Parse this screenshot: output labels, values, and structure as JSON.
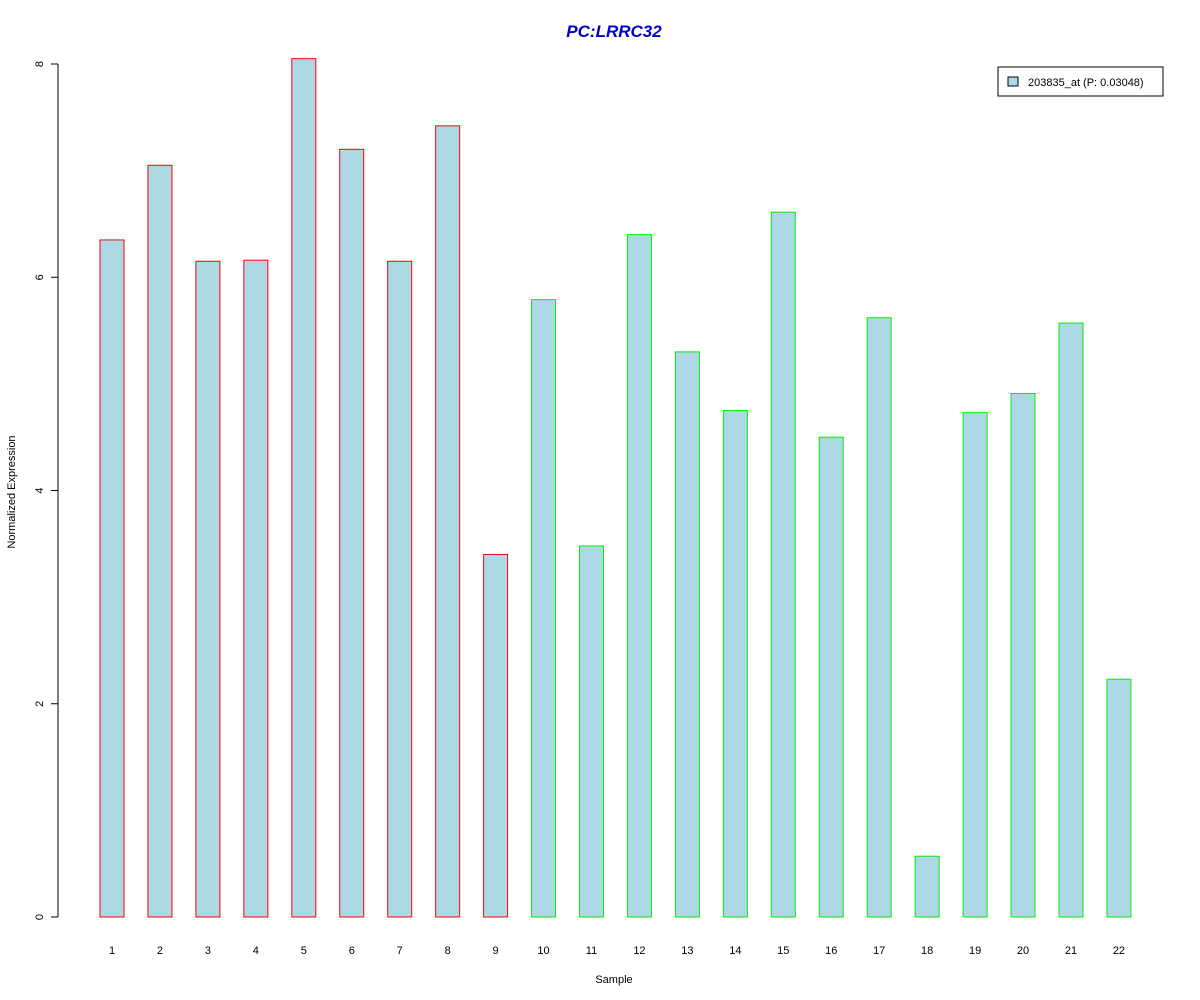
{
  "chart_data": {
    "type": "bar",
    "title": "PC:LRRC32",
    "xlabel": "Sample",
    "ylabel": "Normalized Expression",
    "categories": [
      "1",
      "2",
      "3",
      "4",
      "5",
      "6",
      "7",
      "8",
      "9",
      "10",
      "11",
      "12",
      "13",
      "14",
      "15",
      "16",
      "17",
      "18",
      "19",
      "20",
      "21",
      "22"
    ],
    "values": [
      6.35,
      7.05,
      6.15,
      6.16,
      8.05,
      7.2,
      6.15,
      7.42,
      3.4,
      5.79,
      3.48,
      6.4,
      5.3,
      4.75,
      6.61,
      4.5,
      5.62,
      0.57,
      4.73,
      4.91,
      5.57,
      2.23
    ],
    "groups": [
      "red",
      "red",
      "red",
      "red",
      "red",
      "red",
      "red",
      "red",
      "red",
      "green",
      "green",
      "green",
      "green",
      "green",
      "green",
      "green",
      "green",
      "green",
      "green",
      "green",
      "green",
      "green"
    ],
    "yticks": [
      "0",
      "2",
      "4",
      "6",
      "8"
    ],
    "ylim": [
      0,
      8
    ],
    "grid": false,
    "legend": {
      "label": "203835_at (P: 0.03048)",
      "position": "top-right"
    },
    "colors": {
      "fill": "#add8e6",
      "red_border": "#ff0000",
      "green_border": "#00ee00",
      "title": "#0000cc"
    }
  }
}
